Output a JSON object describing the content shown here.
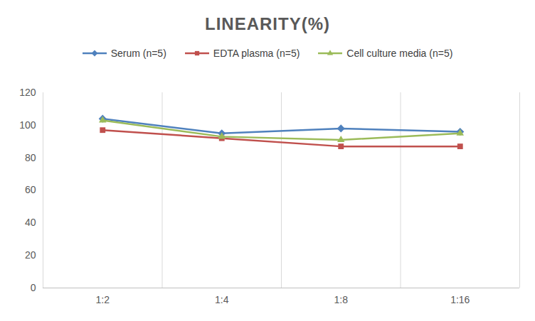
{
  "chart_data": {
    "type": "line",
    "title": "LINEARITY(%)",
    "categories": [
      "1:2",
      "1:4",
      "1:8",
      "1:16"
    ],
    "series": [
      {
        "name": "Serum (n=5)",
        "color": "#4f81bd",
        "marker": "diamond",
        "values": [
          104,
          95,
          98,
          96
        ]
      },
      {
        "name": "EDTA plasma (n=5)",
        "color": "#c0504d",
        "marker": "square",
        "values": [
          97,
          92,
          87,
          87
        ]
      },
      {
        "name": "Cell culture media (n=5)",
        "color": "#9bbb59",
        "marker": "triangle",
        "values": [
          103,
          93,
          91,
          95
        ]
      }
    ],
    "ylim": [
      0,
      120
    ],
    "yticks": [
      0,
      20,
      40,
      60,
      80,
      100,
      120
    ],
    "grid": true,
    "legend": "top"
  }
}
